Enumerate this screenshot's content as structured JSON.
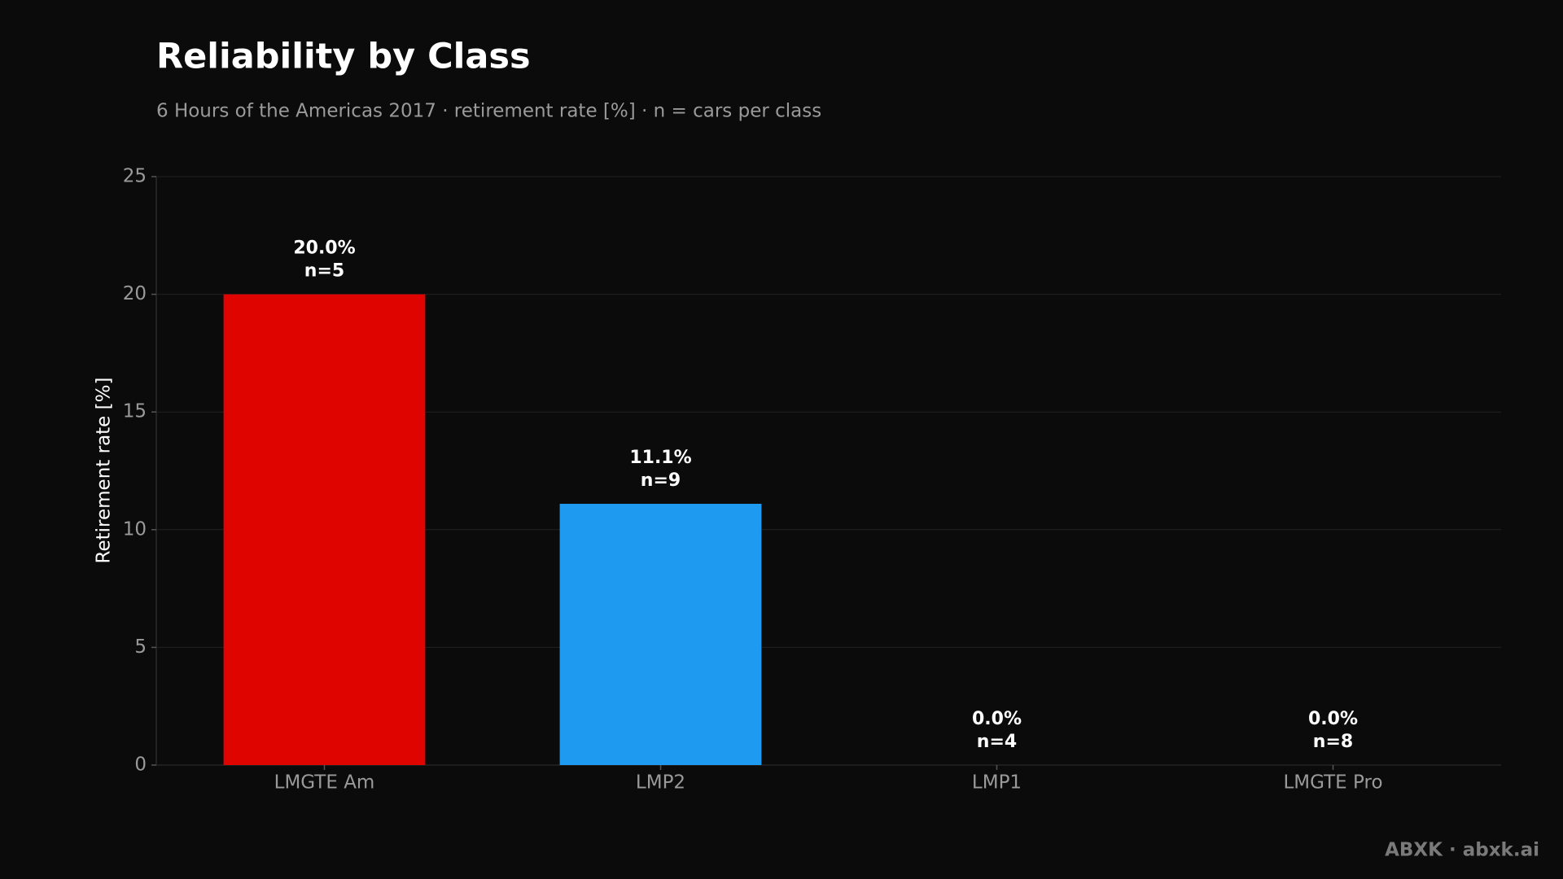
{
  "chart_data": {
    "type": "bar",
    "title": "Reliability by Class",
    "subtitle": "6 Hours of the Americas 2017 · retirement rate [%] · n = cars per class",
    "y_label": "Retirement rate [%]",
    "categories": [
      "LMGTE Am",
      "LMP2",
      "LMP1",
      "LMGTE Pro"
    ],
    "values": [
      20.0,
      11.1,
      0.0,
      0.0
    ],
    "value_labels": [
      "20.0%",
      "11.1%",
      "0.0%",
      "0.0%"
    ],
    "count_labels": [
      "n=5",
      "n=9",
      "n=4",
      "n=8"
    ],
    "colors": [
      "#e00400",
      "#1e9bf0",
      "#1e9bf0",
      "#e00400"
    ],
    "ylim": [
      0,
      25
    ],
    "yticks": [
      0,
      5,
      10,
      15,
      20,
      25
    ],
    "grid": true,
    "footer": "ABXK · abxk.ai"
  }
}
